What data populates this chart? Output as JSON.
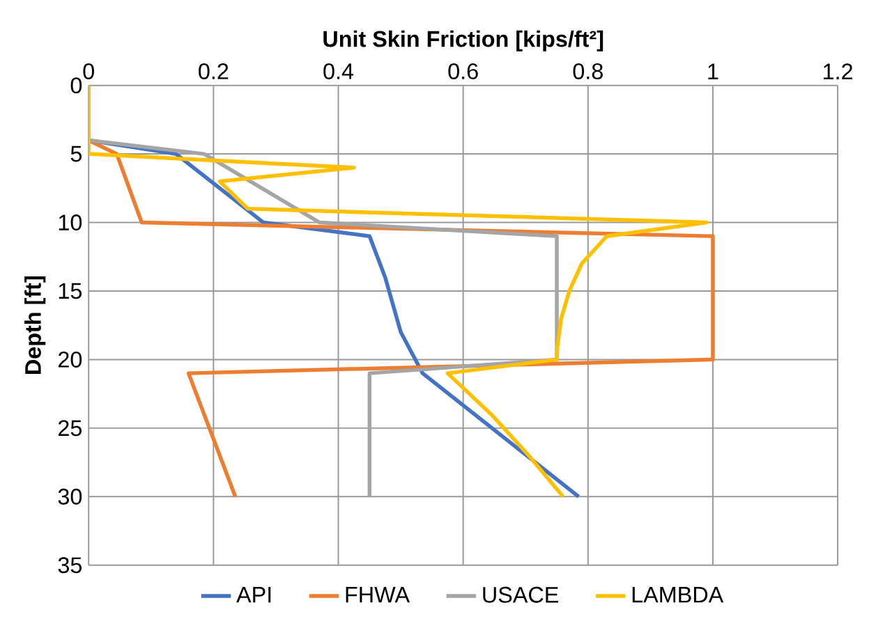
{
  "chart_data": {
    "type": "line",
    "xlabel": "Unit Skin Friction [kips/ft²]",
    "ylabel": "Depth [ft]",
    "xlim": [
      0,
      1.2
    ],
    "ylim": [
      35,
      0
    ],
    "xticks": [
      0,
      0.2,
      0.4,
      0.6,
      0.8,
      1,
      1.2
    ],
    "yticks": [
      0,
      5,
      10,
      15,
      20,
      25,
      30,
      35
    ],
    "grid": true,
    "legend": "bottom",
    "series": [
      {
        "name": "API",
        "color": "#4472c4",
        "x": [
          0,
          0,
          0.14,
          0.28,
          0.45,
          0.475,
          0.5,
          0.535,
          0.785
        ],
        "values": [
          0,
          4,
          5,
          10,
          11,
          14,
          18,
          21,
          30
        ]
      },
      {
        "name": "FHWA",
        "color": "#ed7d31",
        "x": [
          0,
          0,
          0.045,
          0.085,
          1,
          1,
          0.16,
          0.235
        ],
        "values": [
          0,
          4,
          5,
          10,
          11,
          20,
          21,
          30
        ]
      },
      {
        "name": "USACE",
        "color": "#a5a5a5",
        "x": [
          0,
          0,
          0.185,
          0.37,
          0.75,
          0.75,
          0.45,
          0.45
        ],
        "values": [
          0,
          4,
          5,
          10,
          11,
          20,
          21,
          30
        ]
      },
      {
        "name": "LAMBDA",
        "color": "#ffc000",
        "x": [
          0,
          0,
          0.425,
          0.21,
          0.255,
          0.99,
          0.83,
          0.79,
          0.77,
          0.757,
          0.751,
          0.75,
          0.575,
          0.645,
          0.705,
          0.76
        ],
        "values": [
          0,
          5,
          6,
          7,
          9,
          10,
          11,
          13,
          15,
          17,
          19,
          20,
          21,
          24,
          27,
          30
        ]
      }
    ]
  }
}
